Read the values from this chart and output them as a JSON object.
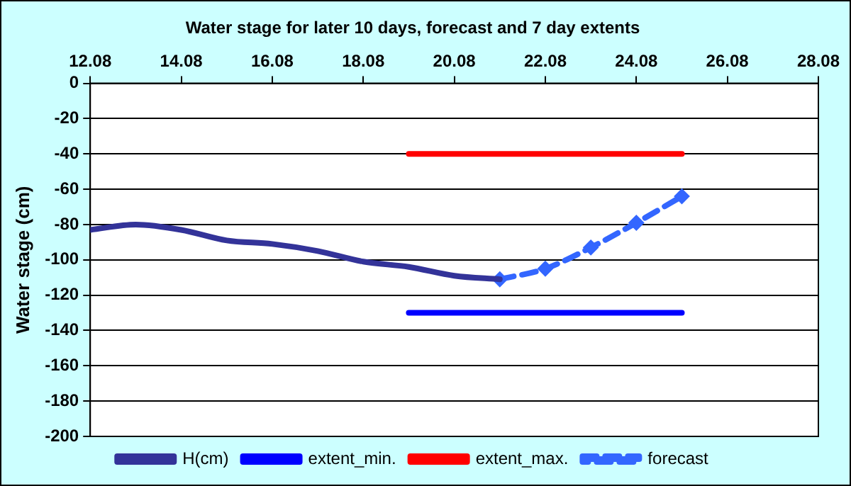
{
  "chart_data": {
    "type": "line",
    "title": "Water stage for later 10 days, forecast and 7 day extents",
    "ylabel": "Water stage (cm)",
    "xlim": [
      "--08-12",
      "--08-28"
    ],
    "xticks": [
      {
        "value": "--08-12",
        "label": "12.08"
      },
      {
        "value": "--08-14",
        "label": "14.08"
      },
      {
        "value": "--08-16",
        "label": "16.08"
      },
      {
        "value": "--08-18",
        "label": "18.08"
      },
      {
        "value": "--08-20",
        "label": "20.08"
      },
      {
        "value": "--08-22",
        "label": "22.08"
      },
      {
        "value": "--08-24",
        "label": "24.08"
      },
      {
        "value": "--08-26",
        "label": "26.08"
      },
      {
        "value": "--08-28",
        "label": "28.08"
      }
    ],
    "ylim": [
      -200,
      0
    ],
    "yticks": [
      -200,
      -180,
      -160,
      -140,
      -120,
      -100,
      -80,
      -60,
      -40,
      -20,
      0
    ],
    "grid": "y",
    "legend": "bottom",
    "series": [
      {
        "name": "H(cm)",
        "color": "#333399",
        "x": [
          "--08-12",
          "--08-13",
          "--08-14",
          "--08-15",
          "--08-16",
          "--08-17",
          "--08-18",
          "--08-19",
          "--08-20",
          "--08-21"
        ],
        "values": [
          -83,
          -80,
          -83,
          -89,
          -91,
          -95,
          -101,
          -104,
          -109,
          -111
        ],
        "marker": "none",
        "line_style": "solid"
      },
      {
        "name": "extent_min.",
        "color": "#0000ff",
        "x": [
          "--08-19",
          "--08-25"
        ],
        "values": [
          -130,
          -130
        ],
        "marker": "none",
        "line_style": "solid"
      },
      {
        "name": "extent_max.",
        "color": "#ff0000",
        "x": [
          "--08-19",
          "--08-25"
        ],
        "values": [
          -40,
          -40
        ],
        "marker": "none",
        "line_style": "solid"
      },
      {
        "name": "forecast",
        "color": "#3366ff",
        "x": [
          "--08-21",
          "--08-22",
          "--08-23",
          "--08-24",
          "--08-25"
        ],
        "values": [
          -111,
          -105,
          -93,
          -79,
          -64
        ],
        "marker": "diamond",
        "line_style": "dashed"
      }
    ]
  }
}
